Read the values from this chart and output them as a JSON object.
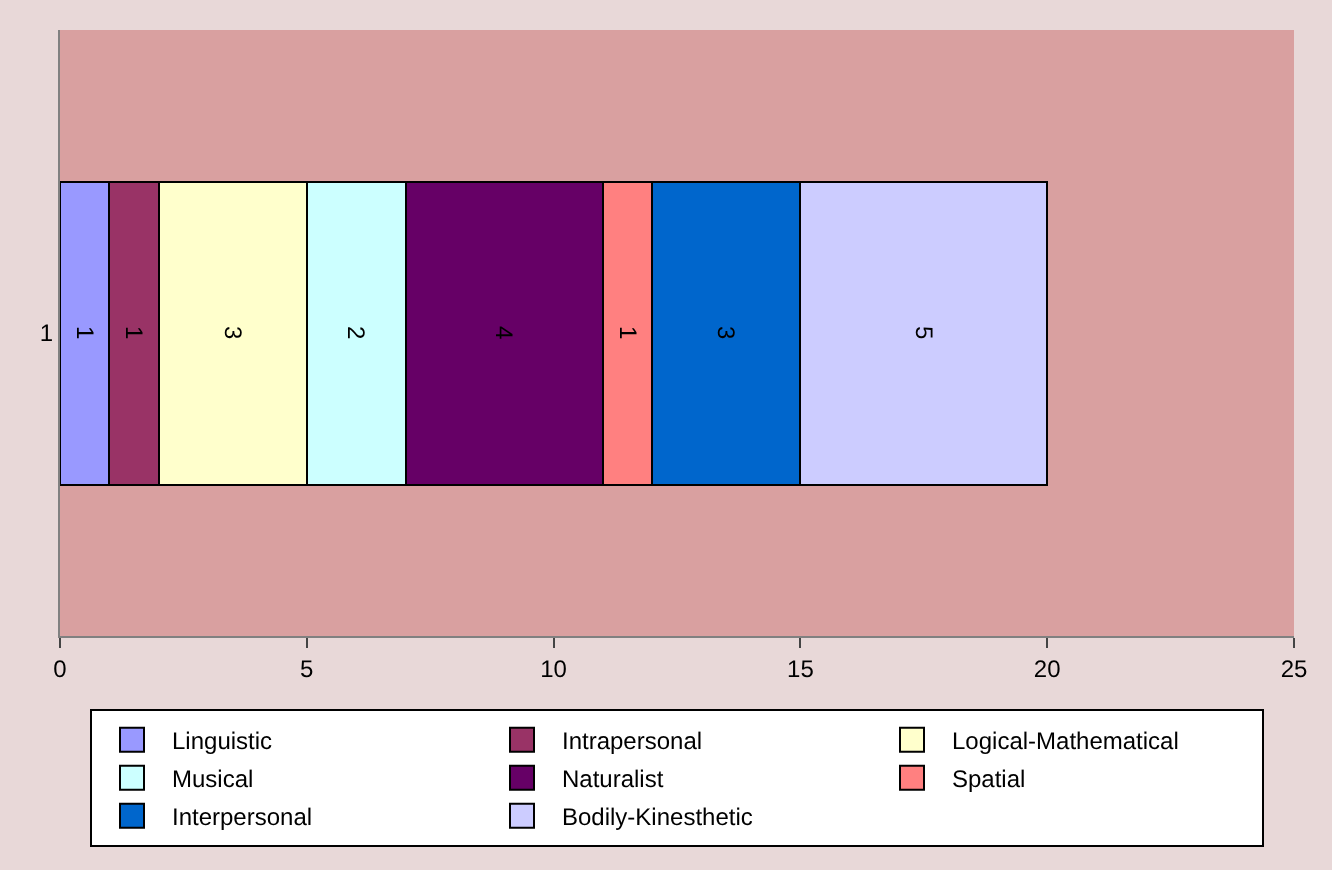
{
  "chart_data": {
    "type": "bar",
    "orientation": "horizontal",
    "stacked": true,
    "categories": [
      "1"
    ],
    "series": [
      {
        "name": "Linguistic",
        "color": "#9999ff",
        "values": [
          1
        ]
      },
      {
        "name": "Intrapersonal",
        "color": "#993366",
        "values": [
          1
        ]
      },
      {
        "name": "Logical-Mathematical",
        "color": "#ffffcc",
        "values": [
          3
        ]
      },
      {
        "name": "Musical",
        "color": "#ccffff",
        "values": [
          2
        ]
      },
      {
        "name": "Naturalist",
        "color": "#660066",
        "values": [
          4
        ]
      },
      {
        "name": "Spatial",
        "color": "#ff8080",
        "values": [
          1
        ]
      },
      {
        "name": "Interpersonal",
        "color": "#0066cc",
        "values": [
          3
        ]
      },
      {
        "name": "Bodily-Kinesthetic",
        "color": "#ccccff",
        "values": [
          5
        ]
      }
    ],
    "xlim": [
      0,
      25
    ],
    "xticks": [
      0,
      5,
      10,
      15,
      20,
      25
    ],
    "grid": false,
    "legend": "bottom",
    "data_labels": true
  }
}
